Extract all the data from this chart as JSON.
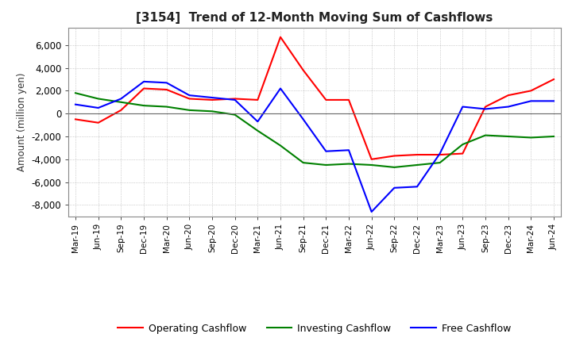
{
  "title": "[3154]  Trend of 12-Month Moving Sum of Cashflows",
  "ylabel": "Amount (million yen)",
  "background_color": "#ffffff",
  "grid_color": "#aaaaaa",
  "x_labels": [
    "Mar-19",
    "Jun-19",
    "Sep-19",
    "Dec-19",
    "Mar-20",
    "Jun-20",
    "Sep-20",
    "Dec-20",
    "Mar-21",
    "Jun-21",
    "Sep-21",
    "Dec-21",
    "Mar-22",
    "Jun-22",
    "Sep-22",
    "Dec-22",
    "Mar-23",
    "Jun-23",
    "Sep-23",
    "Dec-23",
    "Mar-24",
    "Jun-24"
  ],
  "operating_cashflow": [
    -500,
    -800,
    300,
    2200,
    2100,
    1300,
    1200,
    1300,
    1200,
    6700,
    3800,
    1200,
    1200,
    -4000,
    -3700,
    -3600,
    -3600,
    -3500,
    600,
    1600,
    2000,
    3000
  ],
  "investing_cashflow": [
    1800,
    1300,
    1000,
    700,
    600,
    300,
    200,
    -100,
    -1500,
    -2800,
    -4300,
    -4500,
    -4400,
    -4500,
    -4700,
    -4500,
    -4300,
    -2700,
    -1900,
    -2000,
    -2100,
    -2000
  ],
  "free_cashflow": [
    800,
    500,
    1300,
    2800,
    2700,
    1600,
    1400,
    1200,
    -700,
    2200,
    -500,
    -3300,
    -3200,
    -8600,
    -6500,
    -6400,
    -3500,
    600,
    400,
    600,
    1100,
    1100
  ],
  "ylim": [
    -9000,
    7500
  ],
  "yticks": [
    -8000,
    -6000,
    -4000,
    -2000,
    0,
    2000,
    4000,
    6000
  ],
  "line_colors": {
    "operating": "#ff0000",
    "investing": "#008000",
    "free": "#0000ff"
  },
  "legend_labels": {
    "operating": "Operating Cashflow",
    "investing": "Investing Cashflow",
    "free": "Free Cashflow"
  }
}
